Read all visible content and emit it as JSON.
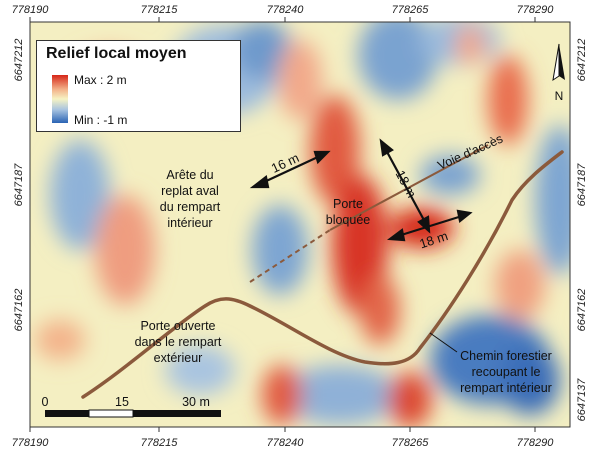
{
  "legend": {
    "title": "Relief local moyen",
    "max_label": "Max : 2 m",
    "min_label": "Min : -1 m",
    "colors": {
      "max": "#d62618",
      "mid": "#f6f3c4",
      "min": "#2a63b4"
    }
  },
  "axes": {
    "x_ticks": [
      "778190",
      "778215",
      "778240",
      "778265",
      "778290"
    ],
    "y_ticks": [
      "6647212",
      "6647187",
      "6647162",
      "6647137"
    ]
  },
  "north_label": "N",
  "scale_bar": {
    "labels": [
      "0",
      "15",
      "30 m"
    ]
  },
  "annotations": {
    "crest": [
      "Arête du",
      "replat aval",
      "du rempart",
      "intérieur"
    ],
    "blocked_gate": [
      "Porte",
      "bloquée"
    ],
    "open_gate": [
      "Porte ouverte",
      "dans le rempart",
      "extérieur"
    ],
    "forest_path": [
      "Chemin forestier",
      "recoupant le",
      "rempart intérieur"
    ],
    "access_road": "Voie d'accès"
  },
  "dimensions": {
    "d1": "16 m",
    "d2": "18 m",
    "d3": "18 m"
  },
  "colors": {
    "path": "#8b5a3c"
  }
}
